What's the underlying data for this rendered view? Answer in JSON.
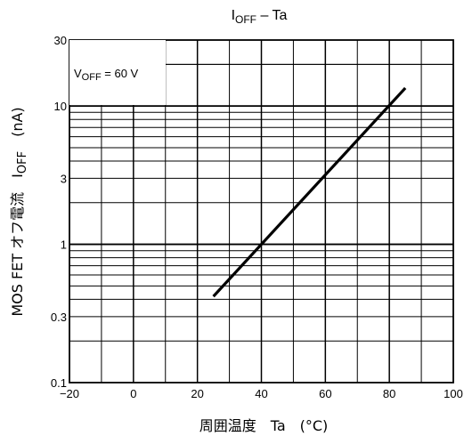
{
  "chart_data": {
    "type": "line",
    "title": {
      "main": "I",
      "sub": "OFF",
      "rest": " – Ta"
    },
    "xlabel": "周囲温度　Ta　(°C)",
    "ylabel": {
      "prefix": "MOS FET オフ電流　I",
      "sub": "OFF",
      "rest": "　(nA)"
    },
    "annotation": {
      "main": "V",
      "sub": "OFF",
      "rest": " = 60 V"
    },
    "x_scale": "linear",
    "y_scale": "log",
    "xlim": [
      -20,
      100
    ],
    "ylim": [
      0.1,
      30
    ],
    "x_ticks": [
      -20,
      0,
      20,
      40,
      60,
      80,
      100
    ],
    "x_tick_labels": [
      "−20",
      "0",
      "20",
      "40",
      "60",
      "80",
      "100"
    ],
    "y_ticks": [
      0.1,
      0.3,
      1,
      3,
      10,
      30
    ],
    "y_tick_labels": [
      "0.1",
      "0.3",
      "1",
      "3",
      "10",
      "30"
    ],
    "grid": true,
    "series": [
      {
        "x": [
          25,
          85
        ],
        "y": [
          0.42,
          13.5
        ],
        "color": "#000000"
      }
    ]
  }
}
